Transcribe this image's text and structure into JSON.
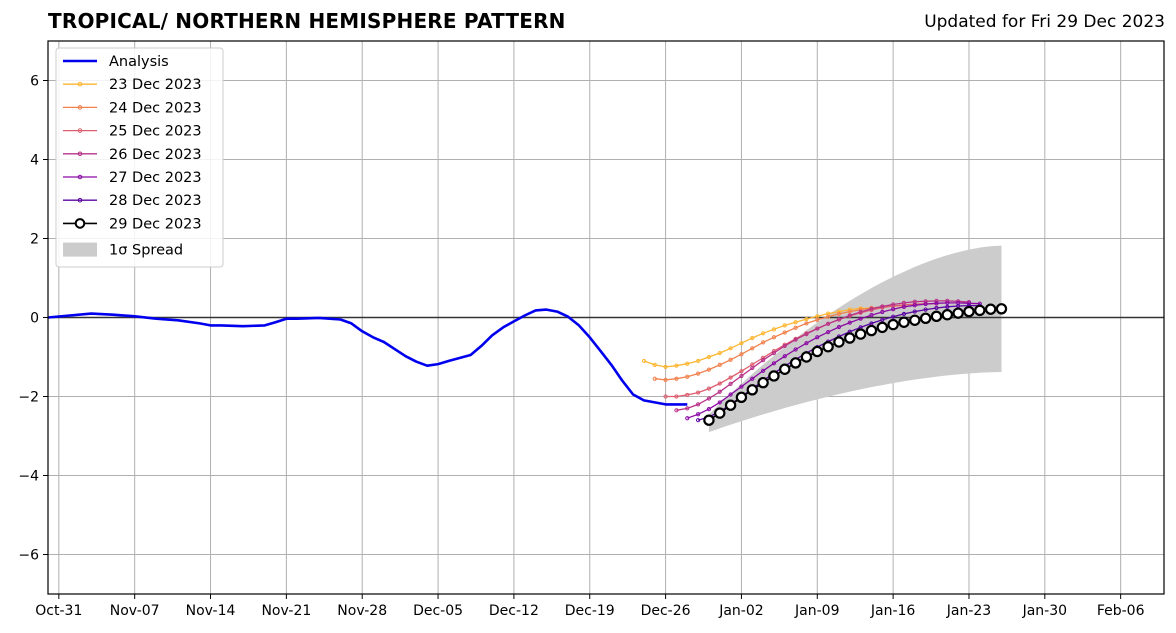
{
  "header": {
    "title": "TROPICAL/ NORTHERN HEMISPHERE PATTERN",
    "updated": "Updated for Fri 29 Dec 2023"
  },
  "chart_data": {
    "type": "line",
    "ylim": [
      -7,
      7
    ],
    "yticks": [
      -6,
      -4,
      -2,
      0,
      2,
      4,
      6
    ],
    "ytick_labels": [
      "−6",
      "−4",
      "−2",
      "0",
      "2",
      "4",
      "6"
    ],
    "xlim": [
      "2023-10-30",
      "2024-02-10"
    ],
    "xticks": [
      "2023-10-31",
      "2023-11-07",
      "2023-11-14",
      "2023-11-21",
      "2023-11-28",
      "2023-12-05",
      "2023-12-12",
      "2023-12-19",
      "2023-12-26",
      "2024-01-02",
      "2024-01-09",
      "2024-01-16",
      "2024-01-23",
      "2024-01-30",
      "2024-02-06"
    ],
    "xtick_labels": [
      "Oct-31",
      "Nov-07",
      "Nov-14",
      "Nov-21",
      "Nov-28",
      "Dec-05",
      "Dec-12",
      "Dec-19",
      "Dec-26",
      "Jan-02",
      "Jan-09",
      "Jan-16",
      "Jan-23",
      "Jan-30",
      "Feb-06"
    ],
    "grid": true,
    "legend_position": "top-left",
    "analysis": {
      "name": "Analysis",
      "color": "#0000ee",
      "x": [
        "2023-10-30",
        "2023-11-01",
        "2023-11-03",
        "2023-11-05",
        "2023-11-07",
        "2023-11-09",
        "2023-11-11",
        "2023-11-13",
        "2023-11-14",
        "2023-11-15",
        "2023-11-17",
        "2023-11-19",
        "2023-11-20",
        "2023-11-21",
        "2023-11-22",
        "2023-11-24",
        "2023-11-26",
        "2023-11-27",
        "2023-11-28",
        "2023-11-29",
        "2023-11-30",
        "2023-12-01",
        "2023-12-02",
        "2023-12-03",
        "2023-12-04",
        "2023-12-05",
        "2023-12-06",
        "2023-12-08",
        "2023-12-09",
        "2023-12-10",
        "2023-12-11",
        "2023-12-12",
        "2023-12-13",
        "2023-12-14",
        "2023-12-15",
        "2023-12-16",
        "2023-12-17",
        "2023-12-18",
        "2023-12-19",
        "2023-12-20",
        "2023-12-21",
        "2023-12-22",
        "2023-12-23",
        "2023-12-24",
        "2023-12-25",
        "2023-12-26",
        "2023-12-27",
        "2023-12-28"
      ],
      "y": [
        0.0,
        0.05,
        0.1,
        0.07,
        0.03,
        -0.03,
        -0.07,
        -0.15,
        -0.2,
        -0.2,
        -0.22,
        -0.2,
        -0.12,
        -0.03,
        -0.03,
        -0.01,
        -0.05,
        -0.15,
        -0.35,
        -0.5,
        -0.62,
        -0.8,
        -0.98,
        -1.12,
        -1.22,
        -1.18,
        -1.1,
        -0.95,
        -0.72,
        -0.45,
        -0.25,
        -0.1,
        0.05,
        0.18,
        0.2,
        0.15,
        0.02,
        -0.2,
        -0.5,
        -0.85,
        -1.2,
        -1.6,
        -1.95,
        -2.1,
        -2.15,
        -2.2,
        -2.2,
        -2.2
      ]
    },
    "forecasts": [
      {
        "name": "23 Dec 2023",
        "color": "#fdb631",
        "start": "2023-12-24",
        "y": [
          -1.1,
          -1.2,
          -1.25,
          -1.22,
          -1.17,
          -1.1,
          -1.0,
          -0.9,
          -0.78,
          -0.65,
          -0.52,
          -0.4,
          -0.3,
          -0.2,
          -0.12,
          -0.04,
          0.03,
          0.1,
          0.15,
          0.2,
          0.23,
          0.24
        ]
      },
      {
        "name": "24 Dec 2023",
        "color": "#f1814d",
        "start": "2023-12-25",
        "y": [
          -1.55,
          -1.58,
          -1.55,
          -1.5,
          -1.42,
          -1.32,
          -1.2,
          -1.07,
          -0.93,
          -0.78,
          -0.63,
          -0.5,
          -0.38,
          -0.26,
          -0.15,
          -0.06,
          0.02,
          0.09,
          0.15,
          0.2,
          0.24,
          0.27,
          0.29,
          0.3
        ]
      },
      {
        "name": "25 Dec 2023",
        "color": "#dd5e6f",
        "start": "2023-12-26",
        "y": [
          -2.0,
          -2.0,
          -1.96,
          -1.9,
          -1.8,
          -1.67,
          -1.52,
          -1.36,
          -1.19,
          -1.02,
          -0.85,
          -0.69,
          -0.54,
          -0.4,
          -0.28,
          -0.16,
          -0.05,
          0.04,
          0.12,
          0.19,
          0.25,
          0.29,
          0.32,
          0.34,
          0.35,
          0.35
        ]
      },
      {
        "name": "26 Dec 2023",
        "color": "#b83289",
        "start": "2023-12-27",
        "y": [
          -2.35,
          -2.3,
          -2.2,
          -2.05,
          -1.88,
          -1.68,
          -1.48,
          -1.28,
          -1.08,
          -0.9,
          -0.72,
          -0.56,
          -0.42,
          -0.28,
          -0.16,
          -0.05,
          0.05,
          0.14,
          0.22,
          0.28,
          0.33,
          0.37,
          0.4,
          0.41,
          0.42,
          0.42,
          0.41,
          0.39
        ]
      },
      {
        "name": "27 Dec 2023",
        "color": "#8b0aa5",
        "start": "2023-12-28",
        "y": [
          -2.55,
          -2.45,
          -2.32,
          -2.15,
          -1.95,
          -1.75,
          -1.55,
          -1.35,
          -1.16,
          -0.98,
          -0.81,
          -0.65,
          -0.5,
          -0.37,
          -0.24,
          -0.13,
          -0.03,
          0.06,
          0.14,
          0.21,
          0.27,
          0.31,
          0.34,
          0.36,
          0.37,
          0.37,
          0.36,
          0.35
        ]
      },
      {
        "name": "28 Dec 2023",
        "color": "#5a05a1",
        "start": "2023-12-29",
        "y": [
          -2.6,
          -2.52,
          -2.38,
          -2.2,
          -2.0,
          -1.8,
          -1.6,
          -1.41,
          -1.23,
          -1.06,
          -0.9,
          -0.75,
          -0.61,
          -0.48,
          -0.36,
          -0.25,
          -0.15,
          -0.06,
          0.02,
          0.09,
          0.15,
          0.2,
          0.24,
          0.27,
          0.29,
          0.3,
          0.3
        ]
      },
      {
        "name": "29 Dec 2023",
        "color": "#000000",
        "start": "2023-12-30",
        "y": [
          -2.6,
          -2.42,
          -2.22,
          -2.02,
          -1.83,
          -1.65,
          -1.48,
          -1.31,
          -1.15,
          -1.0,
          -0.86,
          -0.74,
          -0.62,
          -0.52,
          -0.42,
          -0.33,
          -0.25,
          -0.18,
          -0.12,
          -0.07,
          -0.02,
          0.03,
          0.07,
          0.11,
          0.15,
          0.18,
          0.21,
          0.22
        ]
      }
    ],
    "spread": {
      "name": "1σ Spread",
      "color": "#cccccc",
      "start": "2023-12-30",
      "end": "2024-01-26",
      "upper": [
        -2.45,
        1.82
      ],
      "lower": [
        -2.9,
        -1.38
      ]
    }
  }
}
